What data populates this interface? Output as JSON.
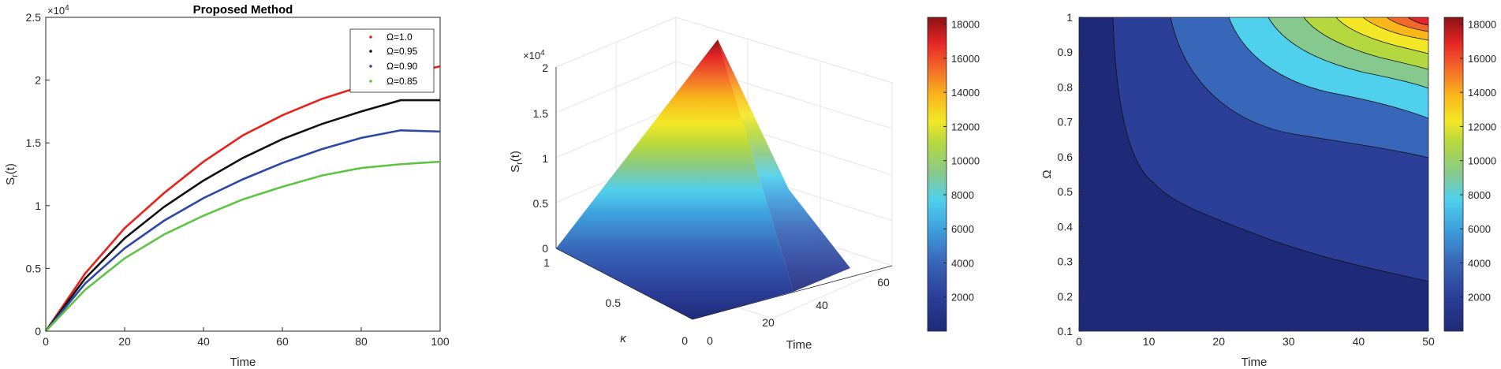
{
  "chart_data": [
    {
      "type": "line",
      "title": "Proposed Method",
      "xlabel": "Time",
      "ylabel_main": "S",
      "ylabel_sub": "r",
      "ylabel_tail": "(t)",
      "exponent_text": "×10",
      "exponent_power": "4",
      "xlim": [
        0,
        100
      ],
      "ylim": [
        0,
        2.5
      ],
      "xticks": [
        "0",
        "20",
        "40",
        "60",
        "80",
        "100"
      ],
      "yticks": [
        "0",
        "0.5",
        "1",
        "1.5",
        "2",
        "2.5"
      ],
      "legend_position": "top-right",
      "x": [
        0,
        10,
        20,
        30,
        40,
        50,
        60,
        70,
        80,
        90,
        100
      ],
      "series": [
        {
          "name": "Ω=1.0",
          "color": "#e8211b",
          "values": [
            0,
            0.46,
            0.82,
            1.1,
            1.35,
            1.56,
            1.72,
            1.85,
            1.95,
            2.04,
            2.11
          ]
        },
        {
          "name": "Ω=0.95",
          "color": "#111111",
          "values": [
            0,
            0.42,
            0.74,
            0.99,
            1.2,
            1.38,
            1.53,
            1.65,
            1.75,
            1.84,
            1.84
          ]
        },
        {
          "name": "Ω=0.90",
          "color": "#2b48a8",
          "values": [
            0,
            0.38,
            0.66,
            0.88,
            1.06,
            1.21,
            1.34,
            1.45,
            1.54,
            1.6,
            1.59
          ]
        },
        {
          "name": "Ω=0.85",
          "color": "#5fc443",
          "values": [
            0,
            0.33,
            0.58,
            0.77,
            0.92,
            1.05,
            1.15,
            1.24,
            1.3,
            1.33,
            1.35
          ]
        }
      ]
    },
    {
      "type": "surface3d",
      "zlabel_main": "S",
      "zlabel_sub": "r",
      "zlabel_tail": "(t)",
      "xlabel": "Time",
      "ylabel": "κ",
      "exponent_text": "×10",
      "exponent_power": "4",
      "zticks": [
        "0",
        "0.5",
        "1",
        "1.5",
        "2"
      ],
      "time_ticks": [
        "0",
        "20",
        "40",
        "60"
      ],
      "kappa_ticks": [
        "0",
        "0.5",
        "1"
      ],
      "zlim": [
        0,
        2
      ],
      "time_range": [
        0,
        50
      ],
      "kappa_range": [
        0,
        1
      ],
      "peak_value": 18400,
      "colorbar": {
        "min": 0,
        "max": 18400,
        "ticks": [
          "2000",
          "4000",
          "6000",
          "8000",
          "10000",
          "12000",
          "14000",
          "16000",
          "18000"
        ]
      }
    },
    {
      "type": "contour",
      "xlabel": "Time",
      "ylabel": "Ω",
      "xlim": [
        0,
        50
      ],
      "ylim": [
        0.1,
        1
      ],
      "xticks": [
        "0",
        "10",
        "20",
        "30",
        "40",
        "50"
      ],
      "yticks": [
        "0.1",
        "0.2",
        "0.3",
        "0.4",
        "0.5",
        "0.6",
        "0.7",
        "0.8",
        "0.9",
        "1"
      ],
      "levels": [
        2000,
        4000,
        6000,
        8000,
        10000,
        12000,
        14000,
        16000,
        18000
      ],
      "colorbar": {
        "min": 0,
        "max": 18400,
        "ticks": [
          "2000",
          "4000",
          "6000",
          "8000",
          "10000",
          "12000",
          "14000",
          "16000",
          "18000"
        ]
      }
    }
  ],
  "colormap": [
    "#1e2a78",
    "#2b3e98",
    "#3866b8",
    "#3fa3de",
    "#4fd0ec",
    "#86c98f",
    "#b5d83f",
    "#f4e826",
    "#f9b71b",
    "#f2682a",
    "#e42426",
    "#8a1214"
  ]
}
